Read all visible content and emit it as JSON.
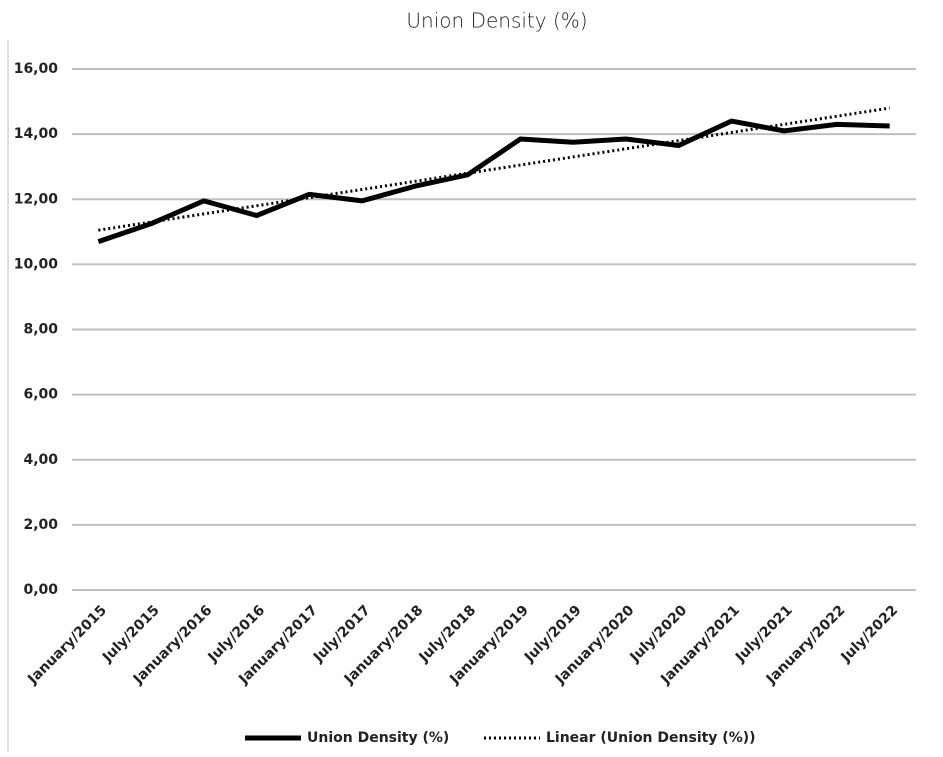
{
  "chart_data": {
    "type": "line",
    "title": "Union Density (%)",
    "categories": [
      "January/2015",
      "July/2015",
      "January/2016",
      "July/2016",
      "January/2017",
      "July/2017",
      "January/2018",
      "July/2018",
      "January/2019",
      "July/2019",
      "January/2020",
      "July/2020",
      "January/2021",
      "July/2021",
      "January/2022",
      "July/2022"
    ],
    "series": [
      {
        "name": "Union Density (%)",
        "color": "#000000",
        "style": "solid",
        "values": [
          10.7,
          11.25,
          11.95,
          11.5,
          12.15,
          11.95,
          12.4,
          12.75,
          13.85,
          13.75,
          13.85,
          13.65,
          14.4,
          14.1,
          14.3,
          14.25
        ]
      },
      {
        "name": "Linear (Union Density (%))",
        "color": "#000000",
        "style": "dotted",
        "values": [
          11.05,
          11.3,
          11.55,
          11.8,
          12.05,
          12.3,
          12.55,
          12.8,
          13.05,
          13.3,
          13.55,
          13.8,
          14.05,
          14.3,
          14.55,
          14.8
        ]
      }
    ],
    "ylim": [
      0,
      16
    ],
    "yticks": [
      {
        "value": 0,
        "label": "0,00"
      },
      {
        "value": 2,
        "label": "2,00"
      },
      {
        "value": 4,
        "label": "4,00"
      },
      {
        "value": 6,
        "label": "6,00"
      },
      {
        "value": 8,
        "label": "8,00"
      },
      {
        "value": 10,
        "label": "10,00"
      },
      {
        "value": 12,
        "label": "12,00"
      },
      {
        "value": 14,
        "label": "14,00"
      },
      {
        "value": 16,
        "label": "16,00"
      }
    ],
    "grid": true,
    "legend": "bottom"
  }
}
